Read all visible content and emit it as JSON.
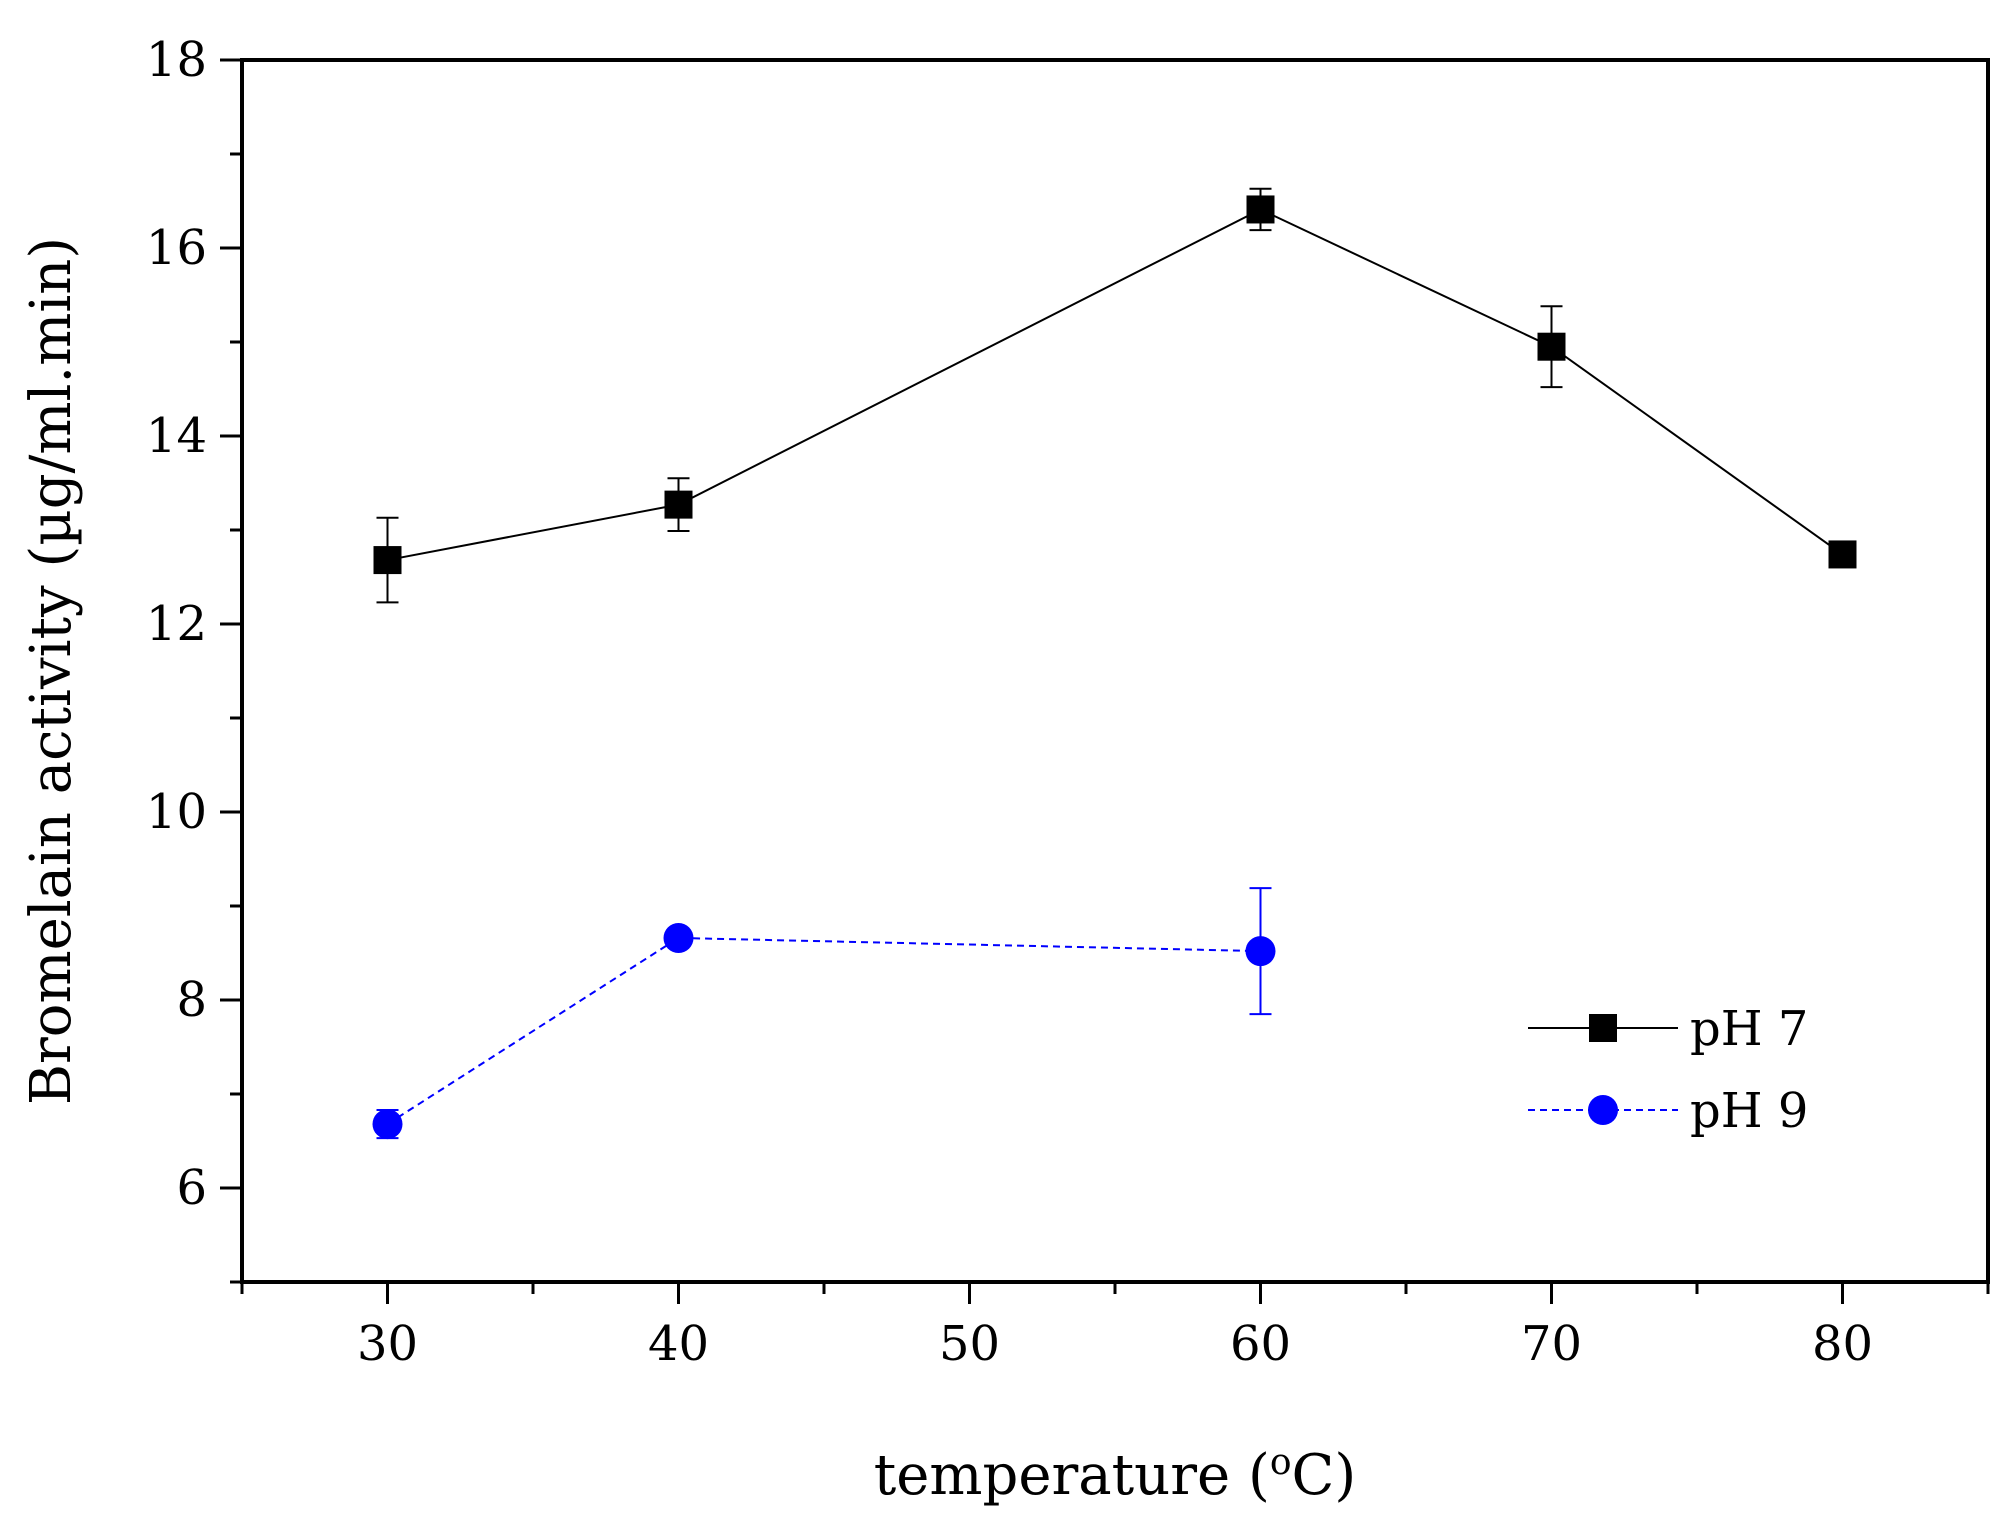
{
  "chart_data": {
    "type": "line",
    "title": "",
    "xlabel": "temperature (",
    "xlabel_sup": "o",
    "xlabel_tail": "C)",
    "ylabel": "Bromelain activity (µg/ml.min)",
    "xlim": [
      25,
      85
    ],
    "ylim": [
      5,
      18
    ],
    "xticks": [
      30,
      40,
      50,
      60,
      70,
      80
    ],
    "yticks": [
      6,
      8,
      10,
      12,
      14,
      16,
      18
    ],
    "grid": false,
    "legend_position": "right",
    "series": [
      {
        "name": "pH 7",
        "color": "#000000",
        "marker": "square",
        "line": "solid",
        "x": [
          30,
          40,
          60,
          70,
          80
        ],
        "y": [
          12.68,
          13.27,
          16.41,
          14.95,
          12.74
        ],
        "err": [
          0.45,
          0.28,
          0.22,
          0.43,
          0.0
        ]
      },
      {
        "name": "pH 9",
        "color": "#0000ff",
        "marker": "circle",
        "line": "dashed",
        "x": [
          30,
          40,
          60
        ],
        "y": [
          6.68,
          8.66,
          8.52
        ],
        "err": [
          0.15,
          0.0,
          0.67
        ]
      }
    ]
  }
}
